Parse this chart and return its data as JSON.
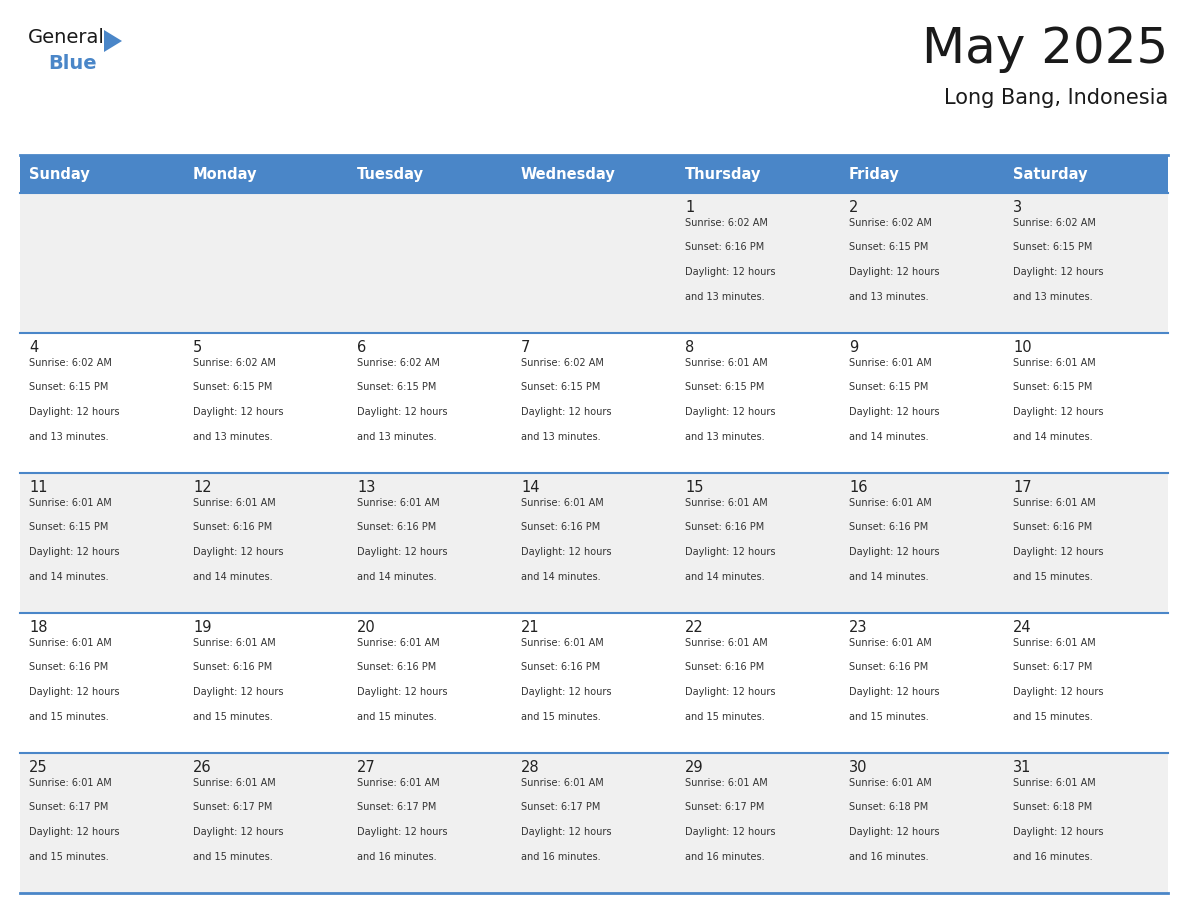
{
  "title": "May 2025",
  "subtitle": "Long Bang, Indonesia",
  "header_bg_color": "#4a86c8",
  "header_text_color": "#ffffff",
  "day_names": [
    "Sunday",
    "Monday",
    "Tuesday",
    "Wednesday",
    "Thursday",
    "Friday",
    "Saturday"
  ],
  "row_bg_even": "#f0f0f0",
  "row_bg_odd": "#ffffff",
  "cell_text_color": "#333333",
  "date_text_color": "#222222",
  "grid_line_color": "#4a86c8",
  "calendar": [
    [
      {
        "day": null,
        "info": null
      },
      {
        "day": null,
        "info": null
      },
      {
        "day": null,
        "info": null
      },
      {
        "day": null,
        "info": null
      },
      {
        "day": 1,
        "info": "Sunrise: 6:02 AM\nSunset: 6:16 PM\nDaylight: 12 hours\nand 13 minutes."
      },
      {
        "day": 2,
        "info": "Sunrise: 6:02 AM\nSunset: 6:15 PM\nDaylight: 12 hours\nand 13 minutes."
      },
      {
        "day": 3,
        "info": "Sunrise: 6:02 AM\nSunset: 6:15 PM\nDaylight: 12 hours\nand 13 minutes."
      }
    ],
    [
      {
        "day": 4,
        "info": "Sunrise: 6:02 AM\nSunset: 6:15 PM\nDaylight: 12 hours\nand 13 minutes."
      },
      {
        "day": 5,
        "info": "Sunrise: 6:02 AM\nSunset: 6:15 PM\nDaylight: 12 hours\nand 13 minutes."
      },
      {
        "day": 6,
        "info": "Sunrise: 6:02 AM\nSunset: 6:15 PM\nDaylight: 12 hours\nand 13 minutes."
      },
      {
        "day": 7,
        "info": "Sunrise: 6:02 AM\nSunset: 6:15 PM\nDaylight: 12 hours\nand 13 minutes."
      },
      {
        "day": 8,
        "info": "Sunrise: 6:01 AM\nSunset: 6:15 PM\nDaylight: 12 hours\nand 13 minutes."
      },
      {
        "day": 9,
        "info": "Sunrise: 6:01 AM\nSunset: 6:15 PM\nDaylight: 12 hours\nand 14 minutes."
      },
      {
        "day": 10,
        "info": "Sunrise: 6:01 AM\nSunset: 6:15 PM\nDaylight: 12 hours\nand 14 minutes."
      }
    ],
    [
      {
        "day": 11,
        "info": "Sunrise: 6:01 AM\nSunset: 6:15 PM\nDaylight: 12 hours\nand 14 minutes."
      },
      {
        "day": 12,
        "info": "Sunrise: 6:01 AM\nSunset: 6:16 PM\nDaylight: 12 hours\nand 14 minutes."
      },
      {
        "day": 13,
        "info": "Sunrise: 6:01 AM\nSunset: 6:16 PM\nDaylight: 12 hours\nand 14 minutes."
      },
      {
        "day": 14,
        "info": "Sunrise: 6:01 AM\nSunset: 6:16 PM\nDaylight: 12 hours\nand 14 minutes."
      },
      {
        "day": 15,
        "info": "Sunrise: 6:01 AM\nSunset: 6:16 PM\nDaylight: 12 hours\nand 14 minutes."
      },
      {
        "day": 16,
        "info": "Sunrise: 6:01 AM\nSunset: 6:16 PM\nDaylight: 12 hours\nand 14 minutes."
      },
      {
        "day": 17,
        "info": "Sunrise: 6:01 AM\nSunset: 6:16 PM\nDaylight: 12 hours\nand 15 minutes."
      }
    ],
    [
      {
        "day": 18,
        "info": "Sunrise: 6:01 AM\nSunset: 6:16 PM\nDaylight: 12 hours\nand 15 minutes."
      },
      {
        "day": 19,
        "info": "Sunrise: 6:01 AM\nSunset: 6:16 PM\nDaylight: 12 hours\nand 15 minutes."
      },
      {
        "day": 20,
        "info": "Sunrise: 6:01 AM\nSunset: 6:16 PM\nDaylight: 12 hours\nand 15 minutes."
      },
      {
        "day": 21,
        "info": "Sunrise: 6:01 AM\nSunset: 6:16 PM\nDaylight: 12 hours\nand 15 minutes."
      },
      {
        "day": 22,
        "info": "Sunrise: 6:01 AM\nSunset: 6:16 PM\nDaylight: 12 hours\nand 15 minutes."
      },
      {
        "day": 23,
        "info": "Sunrise: 6:01 AM\nSunset: 6:16 PM\nDaylight: 12 hours\nand 15 minutes."
      },
      {
        "day": 24,
        "info": "Sunrise: 6:01 AM\nSunset: 6:17 PM\nDaylight: 12 hours\nand 15 minutes."
      }
    ],
    [
      {
        "day": 25,
        "info": "Sunrise: 6:01 AM\nSunset: 6:17 PM\nDaylight: 12 hours\nand 15 minutes."
      },
      {
        "day": 26,
        "info": "Sunrise: 6:01 AM\nSunset: 6:17 PM\nDaylight: 12 hours\nand 15 minutes."
      },
      {
        "day": 27,
        "info": "Sunrise: 6:01 AM\nSunset: 6:17 PM\nDaylight: 12 hours\nand 16 minutes."
      },
      {
        "day": 28,
        "info": "Sunrise: 6:01 AM\nSunset: 6:17 PM\nDaylight: 12 hours\nand 16 minutes."
      },
      {
        "day": 29,
        "info": "Sunrise: 6:01 AM\nSunset: 6:17 PM\nDaylight: 12 hours\nand 16 minutes."
      },
      {
        "day": 30,
        "info": "Sunrise: 6:01 AM\nSunset: 6:18 PM\nDaylight: 12 hours\nand 16 minutes."
      },
      {
        "day": 31,
        "info": "Sunrise: 6:01 AM\nSunset: 6:18 PM\nDaylight: 12 hours\nand 16 minutes."
      }
    ]
  ],
  "logo_text_general": "General",
  "logo_text_blue": "Blue",
  "logo_triangle_color": "#4a86c8",
  "logo_general_color": "#1a1a1a",
  "title_color": "#1a1a1a",
  "subtitle_color": "#1a1a1a"
}
